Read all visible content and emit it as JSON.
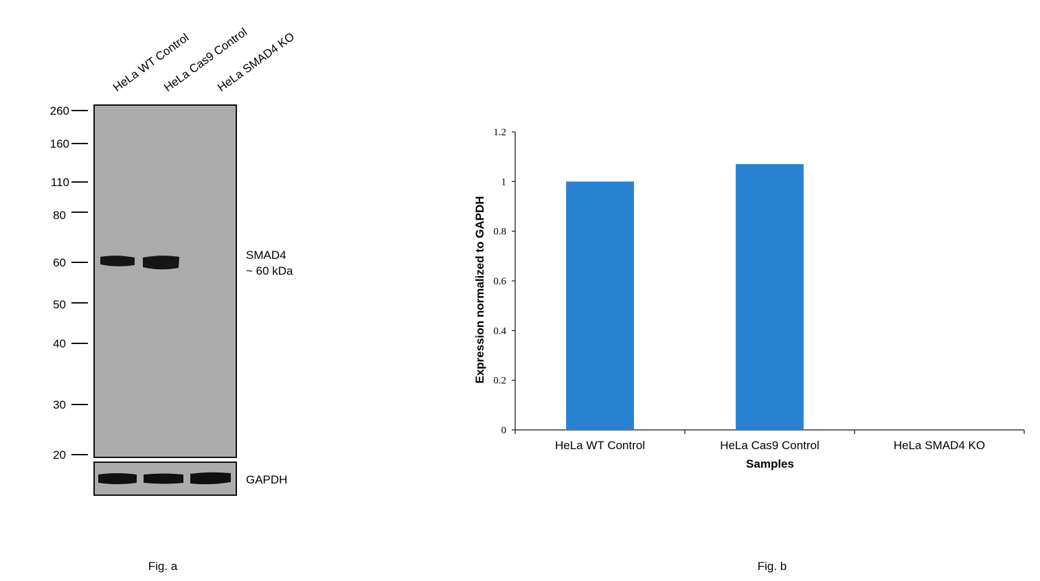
{
  "fig_a": {
    "caption": "Fig. a",
    "lanes": [
      "HeLa WT Control",
      "HeLa Cas9 Control",
      "HeLa SMAD4 KO"
    ],
    "markers_kda": [
      "260",
      "160",
      "110",
      "80",
      "60",
      "50",
      "40",
      "30",
      "20"
    ],
    "target_label": "SMAD4",
    "target_size": "~ 60 kDa",
    "loading_control": "GAPDH",
    "colors": {
      "membrane": "#acacac",
      "band": "#111111"
    }
  },
  "chart_data": {
    "type": "bar",
    "title": "",
    "caption": "Fig. b",
    "categories": [
      "HeLa WT Control",
      "HeLa Cas9 Control",
      "HeLa SMAD4 KO"
    ],
    "values": [
      1.0,
      1.07,
      0.0
    ],
    "xlabel": "Samples",
    "ylabel": "Expression  normalized to GAPDH",
    "ylim": [
      0,
      1.2
    ],
    "yticks": [
      0,
      0.2,
      0.4,
      0.6,
      0.8,
      1,
      1.2
    ],
    "ytick_labels": [
      "0",
      "0.2",
      "0.4",
      "0.6",
      "0.8",
      "1",
      "1.2"
    ],
    "bar_color": "#2882d2",
    "grid": false
  }
}
